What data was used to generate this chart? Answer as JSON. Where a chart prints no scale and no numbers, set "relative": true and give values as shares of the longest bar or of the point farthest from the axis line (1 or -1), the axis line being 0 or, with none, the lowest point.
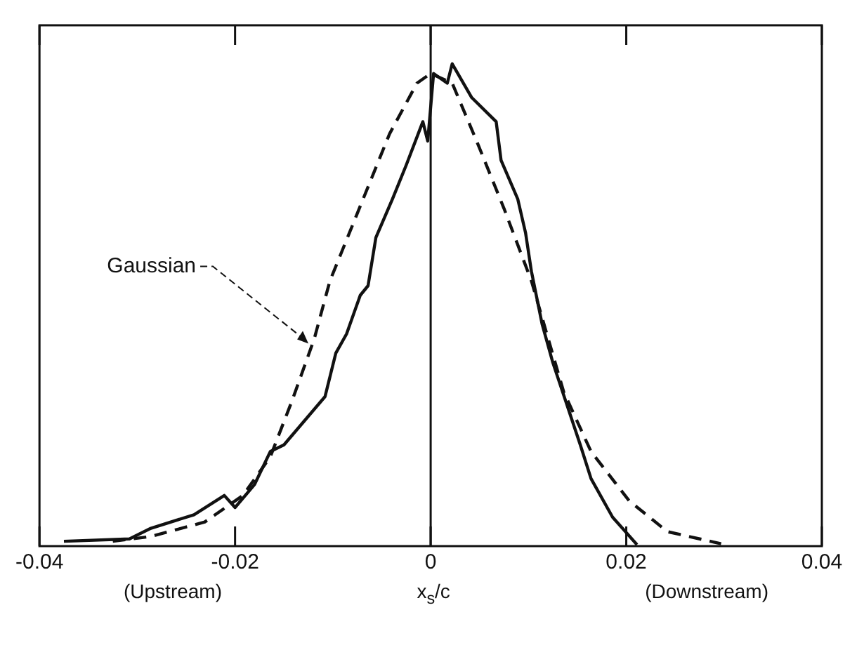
{
  "chart_data": {
    "type": "line",
    "relative": true,
    "xlabel": "x$_{s}$/c",
    "xlim": [
      -0.04,
      0.04
    ],
    "xticks": [
      -0.04,
      -0.02,
      0,
      0.02,
      0.04
    ],
    "grid": false,
    "legend": false,
    "marker": "none",
    "series": [
      {
        "color": "#111111",
        "line_style": "solid",
        "x": [
          -0.0375,
          -0.0308,
          -0.0286,
          -0.0242,
          -0.0211,
          -0.02,
          -0.018,
          -0.0164,
          -0.015,
          -0.0108,
          -0.0097,
          -0.0086,
          -0.0072,
          -0.0064,
          -0.0056,
          -0.0039,
          -0.0025,
          -0.0008,
          -0.0003,
          0.0003,
          0.0017,
          0.0022,
          0.0042,
          0.0067,
          0.0072,
          0.0089,
          0.0097,
          0.0103,
          0.0114,
          0.0125,
          0.0153,
          0.0164,
          0.0186,
          0.0211
        ],
        "values": [
          0.01,
          0.015,
          0.037,
          0.065,
          0.105,
          0.08,
          0.128,
          0.196,
          0.21,
          0.31,
          0.4,
          0.44,
          0.52,
          0.54,
          0.64,
          0.72,
          0.79,
          0.88,
          0.84,
          0.98,
          0.96,
          1.0,
          0.93,
          0.88,
          0.8,
          0.72,
          0.65,
          0.57,
          0.46,
          0.38,
          0.21,
          0.14,
          0.06,
          0.003
        ]
      },
      {
        "color": "#111111",
        "line_style": "dashed",
        "x": [
          -0.0325,
          -0.0286,
          -0.0231,
          -0.0192,
          -0.0164,
          -0.0142,
          -0.0119,
          -0.0103,
          -0.0069,
          -0.0042,
          -0.0014,
          0,
          0.0022,
          0.0047,
          0.0075,
          0.0103,
          0.0136,
          0.0164,
          0.0203,
          0.0242,
          0.0297
        ],
        "values": [
          0.01,
          0.02,
          0.05,
          0.105,
          0.185,
          0.3,
          0.43,
          0.55,
          0.72,
          0.855,
          0.96,
          0.98,
          0.96,
          0.84,
          0.7,
          0.55,
          0.32,
          0.196,
          0.094,
          0.03,
          0.005
        ]
      }
    ],
    "ref_lines": [
      {
        "axis": "x",
        "value": 0,
        "color": "#111111",
        "line_style": "solid"
      }
    ],
    "annotations": [
      {
        "text": "Gaussian",
        "x": -0.0125,
        "y": 0.42
      },
      "(Upstream)",
      "(Downstream)"
    ]
  }
}
